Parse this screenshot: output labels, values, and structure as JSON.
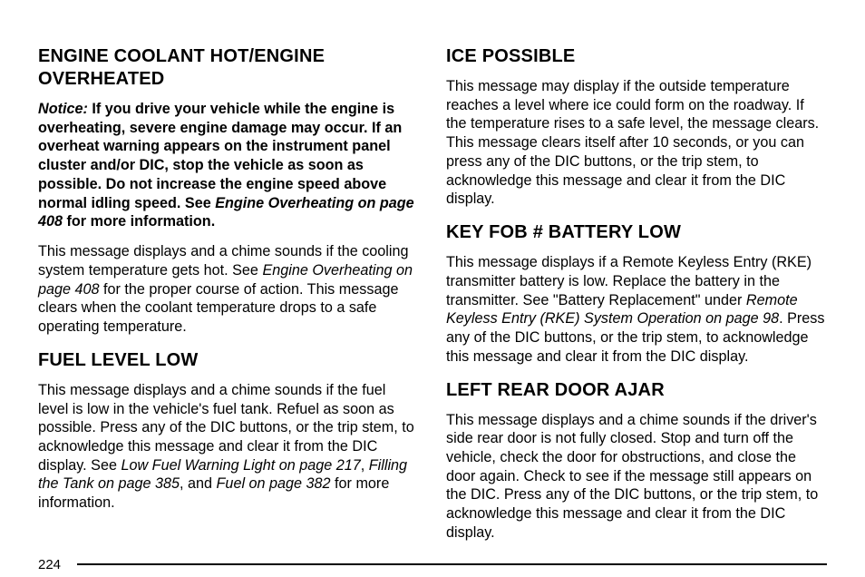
{
  "page_number": "224",
  "left": {
    "h1": "ENGINE COOLANT HOT/ENGINE OVERHEATED",
    "notice_label": "Notice:",
    "notice_body_1": "If you drive your vehicle while the engine is overheating, severe engine damage may occur. If an overheat warning appears on the instrument panel cluster and/or DIC, stop the vehicle as soon as possible. Do not increase the engine speed above normal idling speed. See ",
    "notice_ref": "Engine Overheating on page 408",
    "notice_body_2": " for more information.",
    "p1_a": "This message displays and a chime sounds if the cooling system temperature gets hot. See ",
    "p1_ref": "Engine Overheating on page 408",
    "p1_b": " for the proper course of action. This message clears when the coolant temperature drops to a safe operating temperature.",
    "h2": "FUEL LEVEL LOW",
    "p2_a": "This message displays and a chime sounds if the fuel level is low in the vehicle's fuel tank. Refuel as soon as possible. Press any of the DIC buttons, or the trip stem, to acknowledge this message and clear it from the DIC display. See ",
    "p2_ref1": "Low Fuel Warning Light on page 217",
    "p2_sep1": ", ",
    "p2_ref2": "Filling the Tank on page 385",
    "p2_sep2": ", and ",
    "p2_ref3": "Fuel on page 382",
    "p2_b": " for more information."
  },
  "right": {
    "h1": "ICE POSSIBLE",
    "p1": "This message may display if the outside temperature reaches a level where ice could form on the roadway. If the temperature rises to a safe level, the message clears. This message clears itself after 10 seconds, or you can press any of the DIC buttons, or the trip stem, to acknowledge this message and clear it from the DIC display.",
    "h2": "KEY FOB # BATTERY LOW",
    "p2_a": "This message displays if a Remote Keyless Entry (RKE) transmitter battery is low. Replace the battery in the transmitter. See \"Battery Replacement\" under ",
    "p2_ref": "Remote Keyless Entry (RKE) System Operation on page 98",
    "p2_b": ". Press any of the DIC buttons, or the trip stem, to acknowledge this message and clear it from the DIC display.",
    "h3": "LEFT REAR DOOR AJAR",
    "p3": "This message displays and a chime sounds if the driver's side rear door is not fully closed. Stop and turn off the vehicle, check the door for obstructions, and close the door again. Check to see if the message still appears on the DIC. Press any of the DIC buttons, or the trip stem, to acknowledge this message and clear it from the DIC display."
  }
}
